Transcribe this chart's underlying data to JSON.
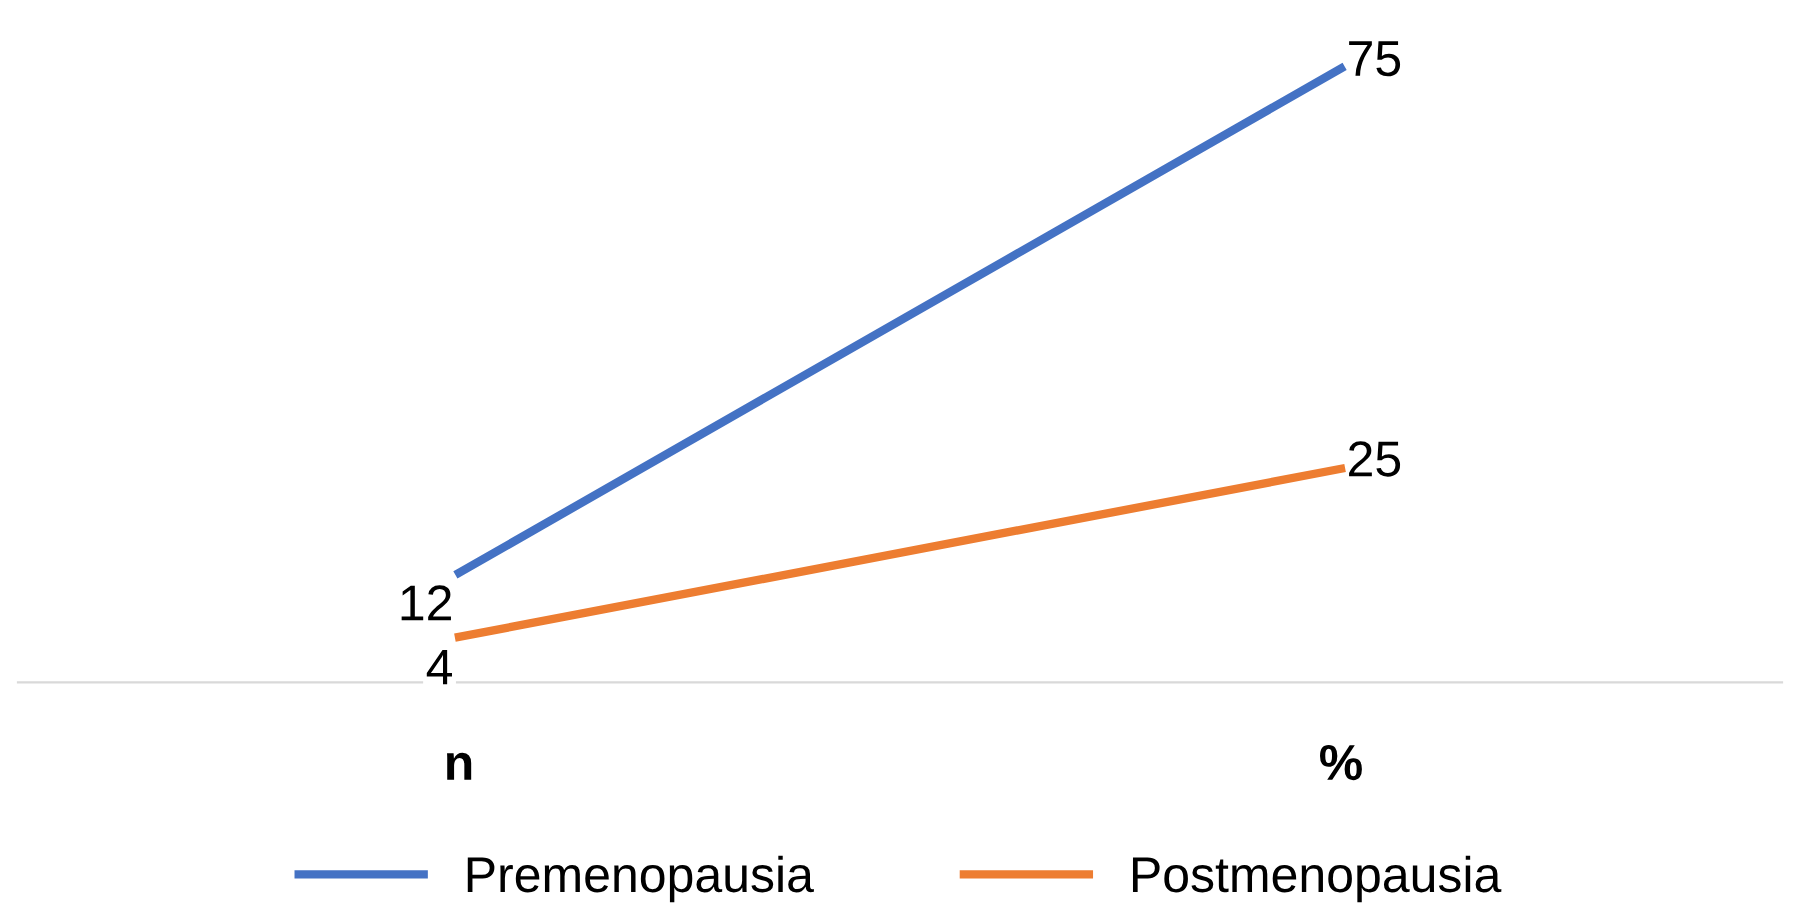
{
  "chart_data": {
    "type": "line",
    "categories": [
      "n",
      "%"
    ],
    "series": [
      {
        "name": "Premenopausia",
        "color": "#4472c4",
        "values": [
          12,
          75
        ]
      },
      {
        "name": "Postmenopausia",
        "color": "#ed7d31",
        "values": [
          4,
          25
        ]
      }
    ],
    "data_labels": true,
    "grid": false,
    "legend": "bottom",
    "marker": "none",
    "line_style": "solid"
  }
}
